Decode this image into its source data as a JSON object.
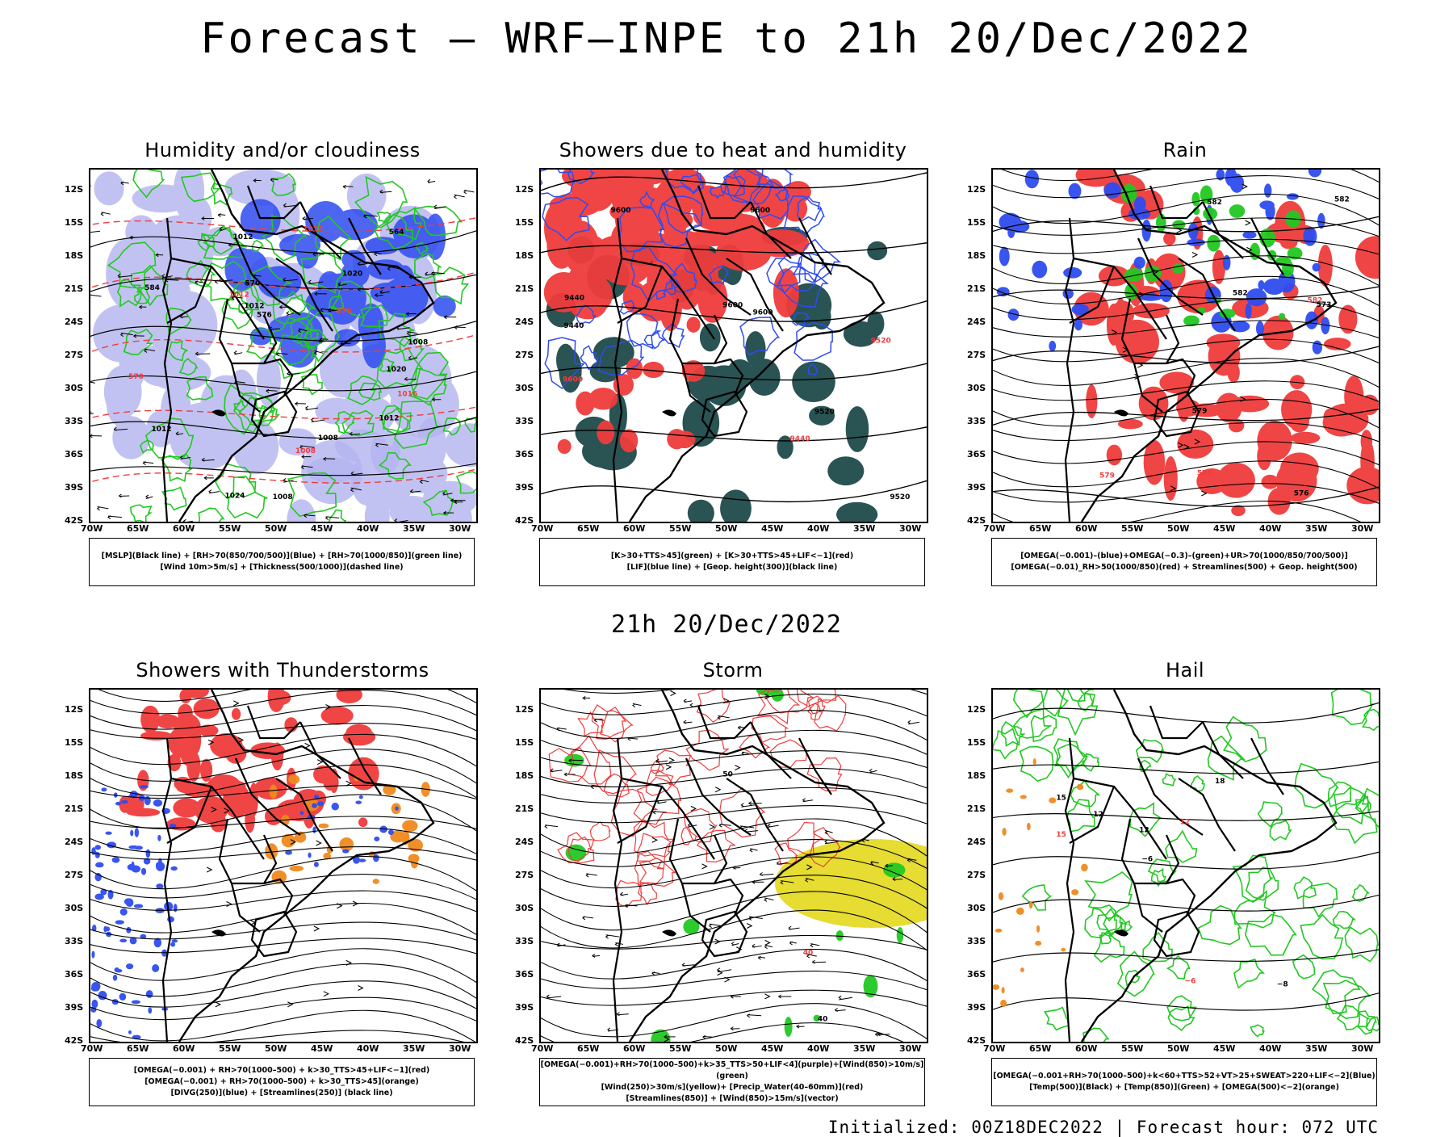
{
  "header": {
    "title": "Forecast — WRF–INPE to 21h 20/Dec/2022",
    "subtitle": "21h 20/Dec/2022"
  },
  "axes": {
    "lat_ticks": [
      "12S",
      "15S",
      "18S",
      "21S",
      "24S",
      "27S",
      "30S",
      "33S",
      "36S",
      "39S",
      "42S"
    ],
    "lon_ticks": [
      "70W",
      "65W",
      "60W",
      "55W",
      "50W",
      "45W",
      "40W",
      "35W",
      "30W"
    ]
  },
  "panels": [
    {
      "id": "humidity",
      "title": "Humidity and/or cloudiness",
      "legend": [
        "[MSLP](Black line) + [RH>70(850/700/500)](Blue) + [RH>70(1000/850)](green line)",
        "[Wind 10m>5m/s] + [Thickness(500/1000)](dashed line)"
      ],
      "contour_labels": [
        "1012",
        "1012",
        "1012",
        "1012",
        "1008",
        "1008",
        "1008",
        "1008",
        "1016",
        "1020",
        "1024",
        "1012",
        "1020",
        "1012",
        "570",
        "576",
        "584",
        "576",
        "570",
        "564"
      ]
    },
    {
      "id": "showers-heat",
      "title": "Showers due to heat and humidity",
      "legend": [
        "[K>30+TTS>45](green) + [K>30+TTS>45+LIF<−1](red)",
        "[LIF](blue line) + [Geop. height(300)](black line)"
      ],
      "contour_labels": [
        "9600",
        "9600",
        "9600",
        "9600",
        "9600",
        "9520",
        "9520",
        "9520",
        "9440",
        "9440",
        "9440"
      ]
    },
    {
      "id": "rain",
      "title": "Rain",
      "legend": [
        "[OMEGA(−0.001)–(blue)+OMEGA(−0.3)–(green)+UR>70(1000/850/700/500)]",
        "[OMEGA(−0.01)_RH>50(1000/850)(red) + Streamlines(500) + Geop. height(500)"
      ],
      "contour_labels": [
        "582",
        "582",
        "582",
        "582",
        "579",
        "579",
        "576",
        "573",
        "576"
      ]
    },
    {
      "id": "thunderstorms",
      "title": "Showers with Thunderstorms",
      "legend": [
        "[OMEGA(−0.001) + RH>70(1000–500) + k>30_TTS>45+LIF<−1](red)",
        "[OMEGA(−0.001) + RH>70(1000–500) + k>30_TTS>45](orange)",
        "[DIVG(250)](blue) + [Streamlines(250)] (black line)"
      ],
      "contour_labels": []
    },
    {
      "id": "storm",
      "title": "Storm",
      "legend": [
        "[OMEGA(−0.001)+RH>70(1000–500)+k>35_TTS>50+LIF<4](purple)+[Wind(850)>10m/s](green)",
        "[Wind(250)>30m/s](yellow)+ [Precip_Water(40–60mm)](red)",
        "[Streamlines(850)] + [Wind(850)>15m/s](vector)"
      ],
      "contour_labels": [
        "40",
        "50",
        "40"
      ]
    },
    {
      "id": "hail",
      "title": "Hail",
      "legend": [
        "[OMEGA(−0.001+RH>70(1000–500)+k<60+TTS>52+VT>25+SWEAT>220+LIF<−2](Blue)",
        "[Temp(500)](Black) + [Temp(850)](Green) + [OMEGA(500)<−2](orange)"
      ],
      "contour_labels": [
        "−6",
        "−8",
        "−6",
        "12",
        "12",
        "12",
        "15",
        "18",
        "15"
      ]
    }
  ],
  "footer": {
    "text": "Initialized: 00Z18DEC2022 | Forecast hour: 072 UTC"
  },
  "colors": {
    "red": "#f03c3c",
    "green": "#22c822",
    "blue": "#2f4cf0",
    "lightblue": "#b4b4f0",
    "teal": "#1f4a4a",
    "orange": "#f08a1e",
    "yellow": "#e6dc32"
  }
}
